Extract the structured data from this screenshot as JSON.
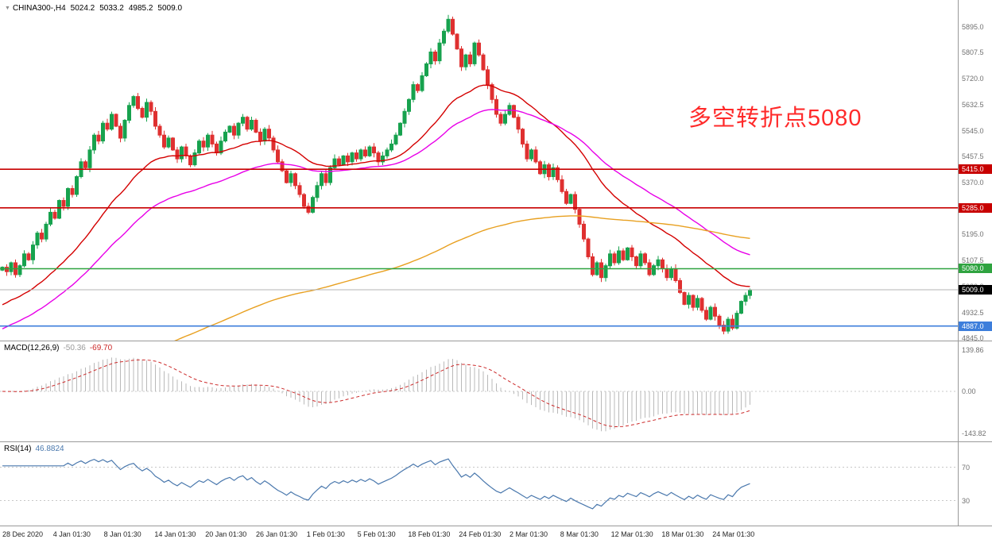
{
  "header": {
    "marker": "▼",
    "symbol": "CHINA300-,H4",
    "open": "5024.2",
    "high": "5033.2",
    "low": "4985.2",
    "close": "5009.0"
  },
  "annotation": {
    "text": "多空转折点5080"
  },
  "macd_label": {
    "title": "MACD(12,26,9)",
    "main": "-50.36",
    "signal": "-69.70"
  },
  "rsi_label": {
    "title": "RSI(14)",
    "value": "46.8824"
  },
  "colors": {
    "annotation": "#ff2a2a",
    "up": "#17a24e",
    "down": "#df3030",
    "macd_main_value": "#9a9a9a",
    "macd_signal": "#cc2a2a",
    "rsi_line": "#4a78ad",
    "axis_text": "#707070",
    "current_tag_bg": "#000000"
  },
  "chart_data": {
    "type": "candlestick",
    "symbol": "CHINA300-",
    "timeframe": "H4",
    "ylim": [
      4838,
      5985
    ],
    "price_ticks": [
      "5895.0",
      "5807.5",
      "5720.0",
      "5632.5",
      "5545.0",
      "5457.5",
      "5370.0",
      "5282.5",
      "5195.0",
      "5107.5",
      "5020.0",
      "4932.5",
      "4845.0"
    ],
    "x_labels": [
      "28 Dec 2020",
      "4 Jan 01:30",
      "8 Jan 01:30",
      "14 Jan 01:30",
      "20 Jan 01:30",
      "26 Jan 01:30",
      "1 Feb 01:30",
      "5 Feb 01:30",
      "18 Feb 01:30",
      "24 Feb 01:30",
      "2 Mar 01:30",
      "8 Mar 01:30",
      "12 Mar 01:30",
      "18 Mar 01:30",
      "24 Mar 01:30"
    ],
    "candles": {
      "first_open": 5075,
      "closes": [
        5085,
        5070,
        5100,
        5060,
        5090,
        5130,
        5110,
        5160,
        5200,
        5180,
        5230,
        5270,
        5250,
        5310,
        5290,
        5350,
        5330,
        5390,
        5440,
        5420,
        5480,
        5530,
        5510,
        5570,
        5550,
        5600,
        5560,
        5520,
        5580,
        5630,
        5660,
        5620,
        5590,
        5640,
        5610,
        5560,
        5530,
        5490,
        5520,
        5480,
        5450,
        5490,
        5460,
        5430,
        5470,
        5510,
        5490,
        5530,
        5500,
        5470,
        5510,
        5540,
        5560,
        5530,
        5570,
        5590,
        5550,
        5580,
        5540,
        5510,
        5550,
        5520,
        5480,
        5440,
        5410,
        5370,
        5400,
        5360,
        5330,
        5290,
        5270,
        5320,
        5360,
        5400,
        5370,
        5420,
        5450,
        5430,
        5460,
        5440,
        5470,
        5450,
        5480,
        5460,
        5490,
        5470,
        5440,
        5460,
        5480,
        5500,
        5530,
        5570,
        5610,
        5650,
        5700,
        5680,
        5730,
        5770,
        5810,
        5780,
        5840,
        5880,
        5920,
        5870,
        5820,
        5760,
        5800,
        5770,
        5840,
        5800,
        5750,
        5700,
        5650,
        5600,
        5570,
        5600,
        5630,
        5590,
        5550,
        5500,
        5450,
        5480,
        5440,
        5400,
        5430,
        5390,
        5420,
        5380,
        5340,
        5300,
        5330,
        5280,
        5230,
        5180,
        5120,
        5060,
        5100,
        5050,
        5090,
        5130,
        5100,
        5140,
        5110,
        5150,
        5120,
        5090,
        5130,
        5100,
        5060,
        5090,
        5110,
        5080,
        5050,
        5080,
        5040,
        5000,
        4960,
        4990,
        4950,
        4980,
        4940,
        4910,
        4950,
        4920,
        4890,
        4870,
        4910,
        4880,
        4930,
        4970,
        4990,
        5009
      ]
    },
    "moving_averages": [
      {
        "name": "ma-fast",
        "period": 30,
        "seed": 4950,
        "color": "#d40000"
      },
      {
        "name": "ma-mid",
        "period": 55,
        "seed": 4870,
        "color": "#e800e8"
      },
      {
        "name": "ma-slow",
        "period": 200,
        "seed": 4550,
        "color": "#e8a020"
      }
    ],
    "hlines": [
      {
        "value": 5415.0,
        "label": "5415.0",
        "color": "#c80000"
      },
      {
        "value": 5285.0,
        "label": "5285.0",
        "color": "#c80000"
      },
      {
        "value": 5080.0,
        "label": "5080.0",
        "color": "#2fa340"
      },
      {
        "value": 4887.0,
        "label": "4887.0",
        "color": "#3d7edb"
      }
    ],
    "current_price": {
      "value": 5009.0,
      "label": "5009.0",
      "line_color": "#b4b4b4"
    },
    "macd": {
      "params": [
        12,
        26,
        9
      ],
      "range": [
        -170,
        170
      ],
      "axis_labels": [
        {
          "value": 139.86,
          "label": "139.86"
        },
        {
          "value": 0,
          "label": "0.00"
        },
        {
          "value": -143.82,
          "label": "-143.82"
        }
      ],
      "histogram_color": "#b9b9b9",
      "signal_color": "#cc2a2a"
    },
    "rsi": {
      "period": 14,
      "range": [
        0,
        100
      ],
      "levels": [
        70,
        30
      ],
      "level_labels": [
        "70",
        "30"
      ],
      "color": "#4a78ad"
    }
  }
}
